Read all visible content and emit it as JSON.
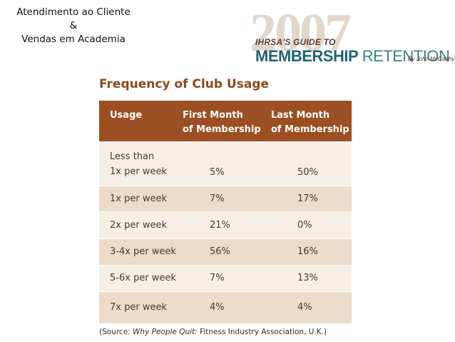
{
  "slide_title": {
    "line1": "Atendimento ao Cliente",
    "line2": "&",
    "line3": "Vendas em Academia"
  },
  "logo": {
    "year": "2007",
    "line1": "IHRSA'S GUIDE TO",
    "line2_bold": "MEMBERSHIP",
    "line2_light": "RETENTION",
    "author": "By John McCarthy"
  },
  "table": {
    "title": "Frequency of Club Usage",
    "headers": {
      "usage": "Usage",
      "first_line1": "First Month",
      "first_line2": "of Membership",
      "last_line1": "Last Month",
      "last_line2": "of Membership"
    },
    "rows": [
      {
        "usage_line1": "Less than",
        "usage_line2": "1x per week",
        "first": "5%",
        "last": "50%"
      },
      {
        "usage": "1x per week",
        "first": "7%",
        "last": "17%"
      },
      {
        "usage": "2x per week",
        "first": "21%",
        "last": "0%"
      },
      {
        "usage": "3-4x per week",
        "first": "56%",
        "last": "16%"
      },
      {
        "usage": "5-6x per week",
        "first": "7%",
        "last": "13%"
      },
      {
        "usage": "7x per week",
        "first": "4%",
        "last": "4%"
      }
    ]
  },
  "source": {
    "prefix": "(Source: ",
    "title": "Why People Quit:",
    "suffix": " Fitness Industry Association, U.K.)"
  },
  "colors": {
    "header_bg": "#9c4f22",
    "row_light": "#f7efe6",
    "row_dark": "#eddccb",
    "title_brown": "#8a4a1e",
    "logo_teal": "#1f6472"
  }
}
